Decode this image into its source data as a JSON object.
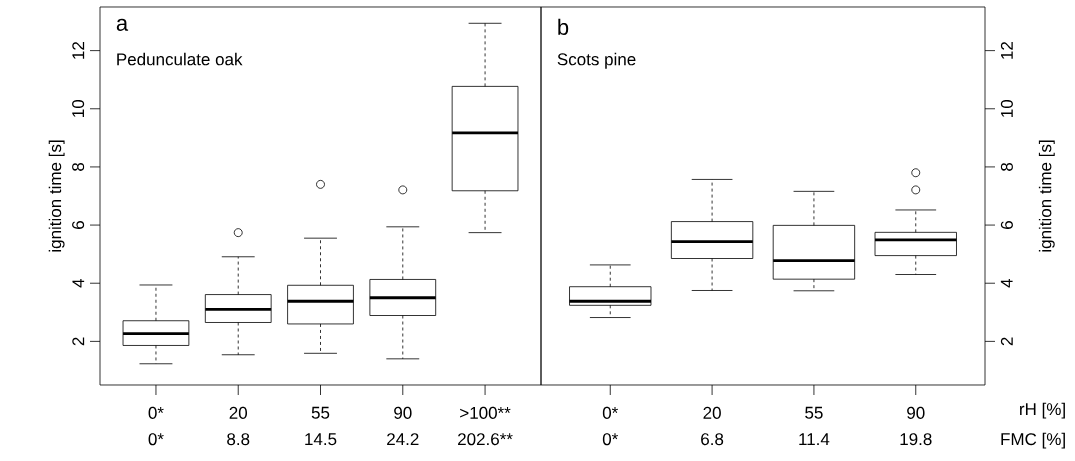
{
  "chart_data": [
    {
      "type": "box",
      "title": "a",
      "subtitle": "Pedunculate oak",
      "ylabel": "ignition time [s]",
      "categories": [
        "0*",
        "20",
        "55",
        "90",
        ">100**"
      ],
      "boxes": [
        {
          "low": 1.23,
          "q1": 1.86,
          "median": 2.27,
          "q3": 2.71,
          "high": 3.94
        },
        {
          "low": 1.54,
          "q1": 2.65,
          "median": 3.1,
          "q3": 3.61,
          "high": 4.91,
          "outliers": [
            5.74
          ]
        },
        {
          "low": 1.59,
          "q1": 2.6,
          "median": 3.38,
          "q3": 3.93,
          "high": 5.55,
          "outliers": [
            7.4
          ]
        },
        {
          "low": 1.4,
          "q1": 2.89,
          "median": 3.5,
          "q3": 4.13,
          "high": 5.94,
          "outliers": [
            7.21
          ]
        },
        {
          "low": 5.74,
          "q1": 7.18,
          "median": 9.17,
          "q3": 10.77,
          "high": 12.94
        }
      ],
      "ylim": [
        0.5,
        13.5
      ],
      "yticks": [
        2,
        4,
        6,
        8,
        10,
        12
      ],
      "annotations": [
        "0*",
        "8.8",
        "14.5",
        "24.2",
        "202.6**"
      ]
    },
    {
      "type": "box",
      "title": "b",
      "subtitle": "Scots pine",
      "ylabel": "ignition time [s]",
      "categories": [
        "0*",
        "20",
        "55",
        "90"
      ],
      "boxes": [
        {
          "low": 2.82,
          "q1": 3.24,
          "median": 3.38,
          "q3": 3.88,
          "high": 4.63
        },
        {
          "low": 3.75,
          "q1": 4.85,
          "median": 5.43,
          "q3": 6.12,
          "high": 7.57
        },
        {
          "low": 3.74,
          "q1": 4.14,
          "median": 4.78,
          "q3": 5.99,
          "high": 7.16
        },
        {
          "low": 4.3,
          "q1": 4.95,
          "median": 5.49,
          "q3": 5.75,
          "high": 6.52,
          "outliers": [
            7.21,
            7.8
          ]
        }
      ],
      "ylim": [
        0.5,
        13.5
      ],
      "yticks": [
        2,
        4,
        6,
        8,
        10,
        12
      ],
      "annotations": [
        "0*",
        "6.8",
        "11.4",
        "19.8",
        "rH [%]",
        "FMC [%]"
      ]
    }
  ]
}
